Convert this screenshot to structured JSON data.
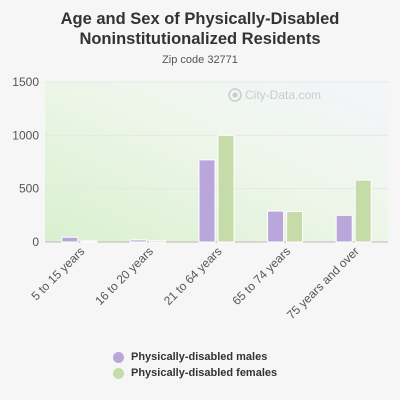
{
  "chart_data": {
    "type": "bar",
    "title": "Age and Sex of Physically-Disabled Noninstitutionalized Residents",
    "subtitle": "Zip code 32771",
    "watermark": "City-Data.com",
    "categories": [
      "5 to 15 years",
      "16 to 20 years",
      "21 to 64 years",
      "65 to 74 years",
      "75 years and over"
    ],
    "series": [
      {
        "name": "Physically-disabled males",
        "color": "#b9a6db",
        "values": [
          45,
          20,
          770,
          290,
          250
        ]
      },
      {
        "name": "Physically-disabled females",
        "color": "#c5dba8",
        "values": [
          10,
          15,
          1000,
          285,
          580
        ]
      }
    ],
    "ylim": [
      0,
      1500
    ],
    "yticks": [
      0,
      500,
      1000,
      1500
    ],
    "grid": true,
    "legend_position": "bottom"
  }
}
